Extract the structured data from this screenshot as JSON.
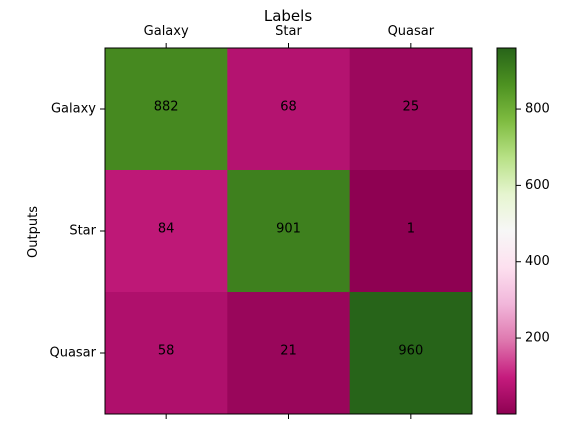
{
  "chart_data": {
    "type": "heatmap",
    "title": "Labels",
    "xlabel": "",
    "ylabel": "Outputs",
    "x_categories": [
      "Galaxy",
      "Star",
      "Quasar"
    ],
    "y_categories": [
      "Galaxy",
      "Star",
      "Quasar"
    ],
    "values": [
      [
        882,
        68,
        25
      ],
      [
        84,
        901,
        1
      ],
      [
        58,
        21,
        960
      ]
    ],
    "colorscale": "PiYG",
    "color_range": [
      1,
      960
    ],
    "colorbar_ticks": [
      200,
      400,
      600,
      800
    ],
    "x_tick_position": "top",
    "grid": false
  }
}
